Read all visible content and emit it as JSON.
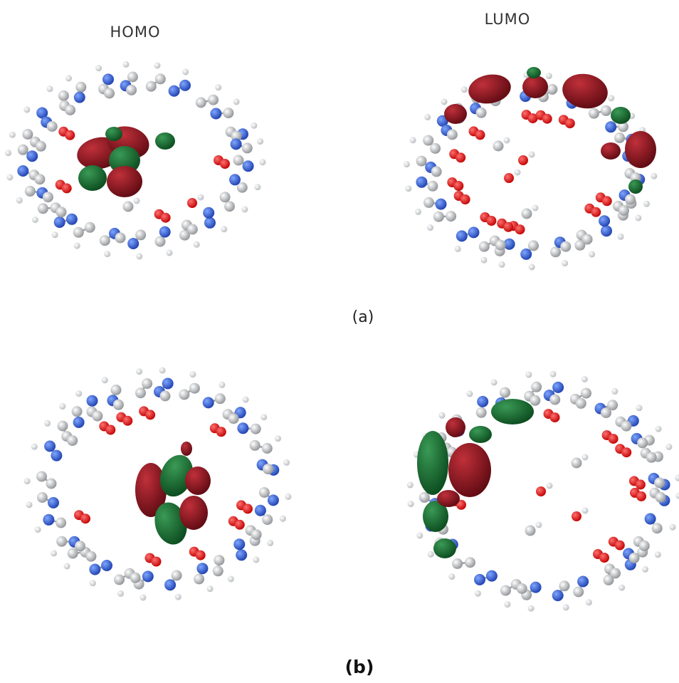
{
  "column_headers": [
    "HOMO",
    "LUMO"
  ],
  "panel_labels": [
    "(a)",
    "(b)"
  ]
}
